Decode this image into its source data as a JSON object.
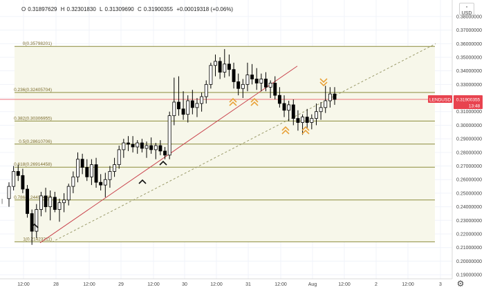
{
  "header": {
    "open_label": "O",
    "open": "0.31897629",
    "high_label": "H",
    "high": "0.32301830",
    "low_label": "L",
    "low": "0.31309690",
    "close_label": "C",
    "close": "0.31900355",
    "change": "+0.00019318 (+0.06%)"
  },
  "price_scale": {
    "currency": "USD",
    "price_tag": "0.31900355",
    "symbol_tag": "LENDUSD",
    "countdown": "13:48",
    "tick_labels": [
      "0.38000000",
      "0.37000000",
      "0.36000000",
      "0.35000000",
      "0.34000000",
      "0.33000000",
      "0.32000000",
      "0.31000000",
      "0.30000000",
      "0.29000000",
      "0.28000000",
      "0.27000000",
      "0.26000000",
      "0.25000000",
      "0.24000000",
      "0.23000000",
      "0.22000000",
      "0.21000000",
      "0.20000000",
      "0.19000000"
    ]
  },
  "colors": {
    "fib_line": "#8a8a3a",
    "fib_label": "#7a6a2a",
    "fib_fill": "#f7f7ea",
    "up_trendline": "#c9424c",
    "dashed_trendline": "#9a9a6a",
    "price_line": "#e8434f",
    "candle": "#000000",
    "chevron_orange": "#e8a23a"
  },
  "chart_data": {
    "type": "candlestick",
    "symbol": "LENDUSD",
    "ylim": [
      0.187,
      0.384
    ],
    "x_axis_labels": [
      "12:00",
      "28",
      "12:00",
      "29",
      "12:00",
      "30",
      "12:00",
      "31",
      "12:00",
      "Aug",
      "12:00",
      "2",
      "12:00",
      "3"
    ],
    "last_price": 0.31900355,
    "fibonacci": [
      {
        "level": "0",
        "price": 0.35798201,
        "label": "0(0.35798201)"
      },
      {
        "level": "0.236",
        "price": 0.32405704,
        "label": "0.236(0.32405704)"
      },
      {
        "level": "0.382",
        "price": 0.30306955,
        "label": "0.382(0.30306955)"
      },
      {
        "level": "0.5",
        "price": 0.28610706,
        "label": "0.5(0.28610706)"
      },
      {
        "level": "0.618",
        "price": 0.26914458,
        "label": "0.618(0.26914458)"
      },
      {
        "level": "0.786",
        "price": 0.24499458,
        "label": "0.786(0.24499458)"
      },
      {
        "level": "1",
        "price": 0.21423211,
        "label": "1(0.21423211)"
      }
    ],
    "candles": [
      [
        0.246,
        0.258,
        0.24,
        0.255
      ],
      [
        0.255,
        0.27,
        0.252,
        0.266
      ],
      [
        0.266,
        0.271,
        0.259,
        0.263
      ],
      [
        0.263,
        0.268,
        0.25,
        0.253
      ],
      [
        0.253,
        0.256,
        0.232,
        0.235
      ],
      [
        0.235,
        0.238,
        0.212,
        0.222
      ],
      [
        0.222,
        0.242,
        0.217,
        0.238
      ],
      [
        0.238,
        0.251,
        0.233,
        0.248
      ],
      [
        0.248,
        0.254,
        0.236,
        0.24
      ],
      [
        0.24,
        0.252,
        0.23,
        0.247
      ],
      [
        0.247,
        0.251,
        0.236,
        0.238
      ],
      [
        0.238,
        0.246,
        0.229,
        0.243
      ],
      [
        0.243,
        0.25,
        0.236,
        0.245
      ],
      [
        0.245,
        0.257,
        0.241,
        0.255
      ],
      [
        0.255,
        0.266,
        0.25,
        0.262
      ],
      [
        0.262,
        0.28,
        0.258,
        0.275
      ],
      [
        0.275,
        0.279,
        0.264,
        0.269
      ],
      [
        0.269,
        0.275,
        0.259,
        0.262
      ],
      [
        0.262,
        0.275,
        0.256,
        0.271
      ],
      [
        0.271,
        0.276,
        0.254,
        0.258
      ],
      [
        0.258,
        0.264,
        0.252,
        0.256
      ],
      [
        0.256,
        0.265,
        0.247,
        0.26
      ],
      [
        0.26,
        0.27,
        0.254,
        0.266
      ],
      [
        0.266,
        0.276,
        0.262,
        0.271
      ],
      [
        0.271,
        0.285,
        0.268,
        0.282
      ],
      [
        0.282,
        0.29,
        0.276,
        0.287
      ],
      [
        0.287,
        0.292,
        0.281,
        0.286
      ],
      [
        0.286,
        0.292,
        0.28,
        0.284
      ],
      [
        0.284,
        0.289,
        0.279,
        0.287
      ],
      [
        0.287,
        0.29,
        0.28,
        0.283
      ],
      [
        0.283,
        0.288,
        0.276,
        0.285
      ],
      [
        0.285,
        0.291,
        0.279,
        0.282
      ],
      [
        0.282,
        0.287,
        0.275,
        0.285
      ],
      [
        0.285,
        0.289,
        0.278,
        0.281
      ],
      [
        0.281,
        0.284,
        0.275,
        0.278
      ],
      [
        0.278,
        0.31,
        0.275,
        0.307
      ],
      [
        0.307,
        0.335,
        0.3,
        0.317
      ],
      [
        0.317,
        0.336,
        0.307,
        0.312
      ],
      [
        0.312,
        0.325,
        0.304,
        0.308
      ],
      [
        0.308,
        0.322,
        0.302,
        0.318
      ],
      [
        0.318,
        0.326,
        0.308,
        0.313
      ],
      [
        0.313,
        0.32,
        0.306,
        0.316
      ],
      [
        0.316,
        0.324,
        0.31,
        0.321
      ],
      [
        0.321,
        0.333,
        0.316,
        0.33
      ],
      [
        0.33,
        0.346,
        0.327,
        0.344
      ],
      [
        0.344,
        0.352,
        0.336,
        0.347
      ],
      [
        0.347,
        0.35,
        0.334,
        0.339
      ],
      [
        0.339,
        0.356,
        0.335,
        0.345
      ],
      [
        0.345,
        0.352,
        0.336,
        0.341
      ],
      [
        0.341,
        0.346,
        0.327,
        0.332
      ],
      [
        0.332,
        0.338,
        0.322,
        0.327
      ],
      [
        0.327,
        0.334,
        0.32,
        0.33
      ],
      [
        0.33,
        0.346,
        0.325,
        0.337
      ],
      [
        0.337,
        0.345,
        0.33,
        0.334
      ],
      [
        0.334,
        0.342,
        0.326,
        0.331
      ],
      [
        0.331,
        0.338,
        0.325,
        0.334
      ],
      [
        0.334,
        0.339,
        0.325,
        0.328
      ],
      [
        0.328,
        0.333,
        0.32,
        0.331
      ],
      [
        0.331,
        0.336,
        0.319,
        0.322
      ],
      [
        0.322,
        0.328,
        0.313,
        0.316
      ],
      [
        0.316,
        0.322,
        0.306,
        0.311
      ],
      [
        0.311,
        0.318,
        0.303,
        0.315
      ],
      [
        0.315,
        0.319,
        0.3,
        0.305
      ],
      [
        0.305,
        0.311,
        0.296,
        0.302
      ],
      [
        0.302,
        0.308,
        0.293,
        0.306
      ],
      [
        0.306,
        0.312,
        0.298,
        0.302
      ],
      [
        0.302,
        0.308,
        0.297,
        0.305
      ],
      [
        0.305,
        0.316,
        0.3,
        0.31
      ],
      [
        0.31,
        0.317,
        0.304,
        0.313
      ],
      [
        0.313,
        0.329,
        0.309,
        0.318
      ],
      [
        0.318,
        0.328,
        0.313,
        0.323
      ],
      [
        0.323,
        0.328,
        0.315,
        0.319
      ]
    ]
  }
}
